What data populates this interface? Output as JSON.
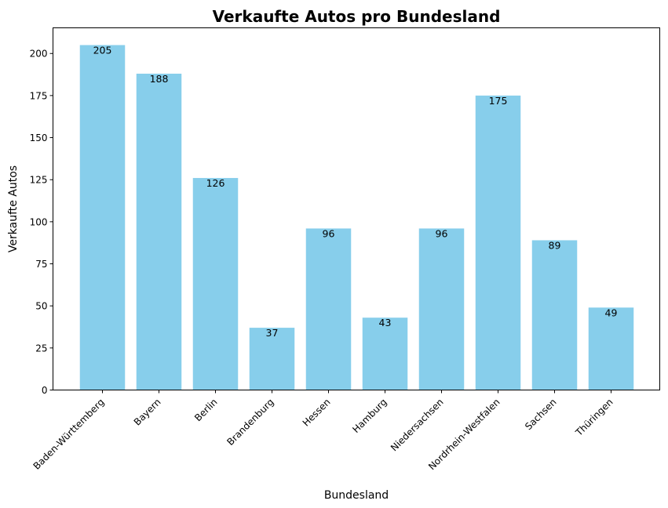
{
  "chart_data": {
    "type": "bar",
    "title": "Verkaufte Autos pro Bundesland",
    "xlabel": "Bundesland",
    "ylabel": "Verkaufte Autos",
    "categories": [
      "Baden-Württemberg",
      "Bayern",
      "Berlin",
      "Brandenburg",
      "Hessen",
      "Hamburg",
      "Niedersachsen",
      "Nordrhein-Westfalen",
      "Sachsen",
      "Thüringen"
    ],
    "values": [
      205,
      188,
      126,
      37,
      96,
      43,
      96,
      175,
      89,
      49
    ],
    "ylim": [
      0,
      215.25
    ],
    "yticks": [
      0,
      25,
      50,
      75,
      100,
      125,
      150,
      175,
      200
    ],
    "bar_color": "#87CEEB",
    "grid": false,
    "legend": "none"
  }
}
